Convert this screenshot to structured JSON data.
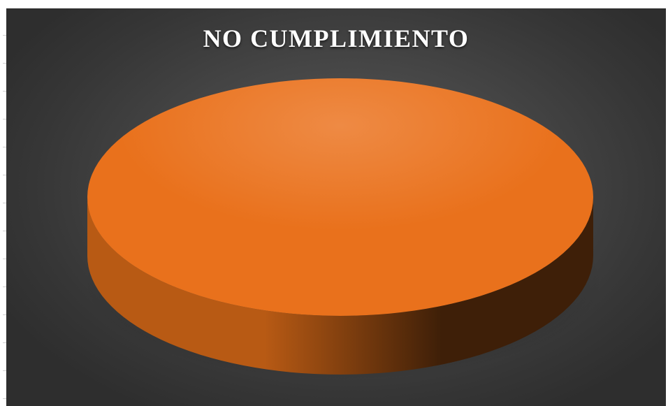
{
  "chart_data": {
    "type": "pie",
    "title": "NO CUMPLIMIENTO",
    "series": [
      {
        "values": [
          100
        ]
      }
    ],
    "colors": {
      "slice_top": "#E9711C",
      "slice_side_light": "#B85A14",
      "slice_side_dark": "#3E1F08",
      "background": "#404040",
      "title": "#FFFFFF"
    },
    "style": "3d",
    "legend": "none"
  }
}
